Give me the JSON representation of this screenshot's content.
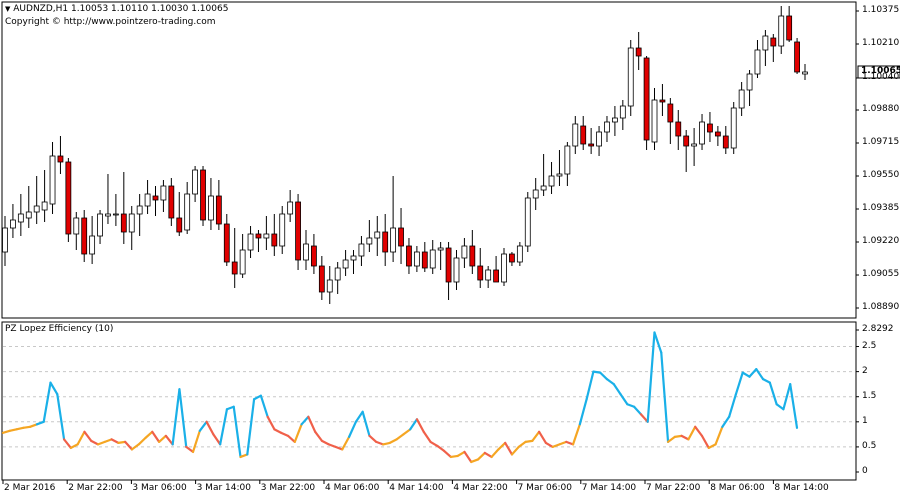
{
  "header": {
    "symbol_line": "AUDNZD,H1  1.10053 1.10110 1.10030 1.10065",
    "copyright": "Copyright © http://www.pointzero-trading.com"
  },
  "price_axis": {
    "ticks": [
      "1.10375",
      "1.10210",
      "1.10040",
      "1.09880",
      "1.09715",
      "1.09550",
      "1.09385",
      "1.09220",
      "1.09055",
      "1.08890"
    ],
    "current_label": "1.10065"
  },
  "indicator": {
    "title": "PZ Lopez Efficiency (10)",
    "ticks": [
      "2.8292",
      "2.5",
      "2",
      "1.5",
      "1",
      "0.5",
      "0"
    ]
  },
  "time_axis": {
    "labels": [
      "2 Mar 2016",
      "2 Mar 22:00",
      "3 Mar 06:00",
      "3 Mar 14:00",
      "3 Mar 22:00",
      "4 Mar 06:00",
      "4 Mar 14:00",
      "4 Mar 22:00",
      "7 Mar 06:00",
      "7 Mar 14:00",
      "7 Mar 22:00",
      "8 Mar 06:00",
      "8 Mar 14:00"
    ]
  },
  "colors": {
    "bull_body": "#ffffff",
    "bear_body": "#e00000",
    "wick": "#000000",
    "line_orange": "#f5a623",
    "line_red": "#f0604a",
    "line_blue": "#1ab0e8",
    "grid": "#c8c8c8"
  },
  "chart_data": [
    {
      "type": "candlestick",
      "title": "AUDNZD,H1",
      "ylim": [
        1.0884,
        1.1042
      ],
      "candles": [
        {
          "o": 1.0917,
          "h": 1.0935,
          "l": 1.091,
          "c": 1.0929
        },
        {
          "o": 1.0929,
          "h": 1.0941,
          "l": 1.0924,
          "c": 1.0933
        },
        {
          "o": 1.0932,
          "h": 1.0946,
          "l": 1.0925,
          "c": 1.0936
        },
        {
          "o": 1.0934,
          "h": 1.095,
          "l": 1.0929,
          "c": 1.0937
        },
        {
          "o": 1.0937,
          "h": 1.0955,
          "l": 1.0931,
          "c": 1.094
        },
        {
          "o": 1.0938,
          "h": 1.0958,
          "l": 1.0932,
          "c": 1.0942
        },
        {
          "o": 1.0941,
          "h": 1.0972,
          "l": 1.0936,
          "c": 1.0965
        },
        {
          "o": 1.0965,
          "h": 1.0975,
          "l": 1.0956,
          "c": 1.0962
        },
        {
          "o": 1.0962,
          "h": 1.0964,
          "l": 1.0922,
          "c": 1.0926
        },
        {
          "o": 1.0926,
          "h": 1.0937,
          "l": 1.0918,
          "c": 1.0934
        },
        {
          "o": 1.0934,
          "h": 1.0938,
          "l": 1.0912,
          "c": 1.0916
        },
        {
          "o": 1.0916,
          "h": 1.0935,
          "l": 1.0911,
          "c": 1.0925
        },
        {
          "o": 1.0925,
          "h": 1.0938,
          "l": 1.0921,
          "c": 1.0936
        },
        {
          "o": 1.0935,
          "h": 1.0956,
          "l": 1.0931,
          "c": 1.0936
        },
        {
          "o": 1.0936,
          "h": 1.0946,
          "l": 1.093,
          "c": 1.0936
        },
        {
          "o": 1.0936,
          "h": 1.0957,
          "l": 1.0921,
          "c": 1.0927
        },
        {
          "o": 1.0927,
          "h": 1.094,
          "l": 1.0918,
          "c": 1.0936
        },
        {
          "o": 1.0936,
          "h": 1.0946,
          "l": 1.0925,
          "c": 1.094
        },
        {
          "o": 1.094,
          "h": 1.0953,
          "l": 1.0936,
          "c": 1.0946
        },
        {
          "o": 1.0945,
          "h": 1.095,
          "l": 1.0935,
          "c": 1.0943
        },
        {
          "o": 1.0943,
          "h": 1.0953,
          "l": 1.0937,
          "c": 1.095
        },
        {
          "o": 1.095,
          "h": 1.0954,
          "l": 1.093,
          "c": 1.0934
        },
        {
          "o": 1.0934,
          "h": 1.0947,
          "l": 1.0925,
          "c": 1.0927
        },
        {
          "o": 1.0928,
          "h": 1.0952,
          "l": 1.0926,
          "c": 1.0946
        },
        {
          "o": 1.0946,
          "h": 1.096,
          "l": 1.0942,
          "c": 1.0958
        },
        {
          "o": 1.0958,
          "h": 1.096,
          "l": 1.093,
          "c": 1.0933
        },
        {
          "o": 1.0933,
          "h": 1.0954,
          "l": 1.0928,
          "c": 1.0945
        },
        {
          "o": 1.0945,
          "h": 1.0953,
          "l": 1.0928,
          "c": 1.0931
        },
        {
          "o": 1.0931,
          "h": 1.0936,
          "l": 1.091,
          "c": 1.0912
        },
        {
          "o": 1.0912,
          "h": 1.0929,
          "l": 1.0899,
          "c": 1.0906
        },
        {
          "o": 1.0906,
          "h": 1.0926,
          "l": 1.0904,
          "c": 1.0918
        },
        {
          "o": 1.0918,
          "h": 1.093,
          "l": 1.0914,
          "c": 1.0926
        },
        {
          "o": 1.0926,
          "h": 1.0928,
          "l": 1.0917,
          "c": 1.0924
        },
        {
          "o": 1.0924,
          "h": 1.0935,
          "l": 1.0918,
          "c": 1.0926
        },
        {
          "o": 1.0926,
          "h": 1.0936,
          "l": 1.0915,
          "c": 1.092
        },
        {
          "o": 1.092,
          "h": 1.094,
          "l": 1.0916,
          "c": 1.0936
        },
        {
          "o": 1.0936,
          "h": 1.0948,
          "l": 1.0932,
          "c": 1.0942
        },
        {
          "o": 1.0942,
          "h": 1.0946,
          "l": 1.0908,
          "c": 1.0913
        },
        {
          "o": 1.0913,
          "h": 1.0928,
          "l": 1.0908,
          "c": 1.0921
        },
        {
          "o": 1.092,
          "h": 1.0926,
          "l": 1.0906,
          "c": 1.091
        },
        {
          "o": 1.091,
          "h": 1.0915,
          "l": 1.0893,
          "c": 1.0897
        },
        {
          "o": 1.0897,
          "h": 1.091,
          "l": 1.0891,
          "c": 1.0903
        },
        {
          "o": 1.0903,
          "h": 1.0912,
          "l": 1.0896,
          "c": 1.0909
        },
        {
          "o": 1.0909,
          "h": 1.0918,
          "l": 1.0905,
          "c": 1.0913
        },
        {
          "o": 1.0913,
          "h": 1.0918,
          "l": 1.0906,
          "c": 1.0915
        },
        {
          "o": 1.0915,
          "h": 1.0925,
          "l": 1.091,
          "c": 1.0921
        },
        {
          "o": 1.0921,
          "h": 1.0933,
          "l": 1.0917,
          "c": 1.0924
        },
        {
          "o": 1.0924,
          "h": 1.0935,
          "l": 1.0915,
          "c": 1.0927
        },
        {
          "o": 1.0927,
          "h": 1.0936,
          "l": 1.091,
          "c": 1.0917
        },
        {
          "o": 1.0917,
          "h": 1.0955,
          "l": 1.0912,
          "c": 1.0929
        },
        {
          "o": 1.0929,
          "h": 1.0939,
          "l": 1.0911,
          "c": 1.092
        },
        {
          "o": 1.092,
          "h": 1.0924,
          "l": 1.0906,
          "c": 1.091
        },
        {
          "o": 1.091,
          "h": 1.092,
          "l": 1.0907,
          "c": 1.0917
        },
        {
          "o": 1.0917,
          "h": 1.0922,
          "l": 1.0907,
          "c": 1.0909
        },
        {
          "o": 1.0909,
          "h": 1.0923,
          "l": 1.0906,
          "c": 1.0918
        },
        {
          "o": 1.0918,
          "h": 1.0922,
          "l": 1.0908,
          "c": 1.0919
        },
        {
          "o": 1.0919,
          "h": 1.0922,
          "l": 1.0893,
          "c": 1.0902
        },
        {
          "o": 1.0902,
          "h": 1.0918,
          "l": 1.0898,
          "c": 1.0914
        },
        {
          "o": 1.0914,
          "h": 1.0924,
          "l": 1.0909,
          "c": 1.092
        },
        {
          "o": 1.092,
          "h": 1.0928,
          "l": 1.0906,
          "c": 1.091
        },
        {
          "o": 1.091,
          "h": 1.0919,
          "l": 1.0899,
          "c": 1.0903
        },
        {
          "o": 1.0903,
          "h": 1.091,
          "l": 1.0899,
          "c": 1.0908
        },
        {
          "o": 1.0908,
          "h": 1.0915,
          "l": 1.0903,
          "c": 1.0902
        },
        {
          "o": 1.0902,
          "h": 1.0919,
          "l": 1.09,
          "c": 1.0916
        },
        {
          "o": 1.0916,
          "h": 1.0917,
          "l": 1.091,
          "c": 1.0912
        },
        {
          "o": 1.0912,
          "h": 1.0922,
          "l": 1.091,
          "c": 1.092
        },
        {
          "o": 1.092,
          "h": 1.0947,
          "l": 1.0917,
          "c": 1.0944
        },
        {
          "o": 1.0944,
          "h": 1.0954,
          "l": 1.0938,
          "c": 1.0948
        },
        {
          "o": 1.0948,
          "h": 1.0966,
          "l": 1.0945,
          "c": 1.095
        },
        {
          "o": 1.095,
          "h": 1.0962,
          "l": 1.0946,
          "c": 1.0955
        },
        {
          "o": 1.0955,
          "h": 1.0968,
          "l": 1.095,
          "c": 1.0956
        },
        {
          "o": 1.0956,
          "h": 1.0972,
          "l": 1.095,
          "c": 1.097
        },
        {
          "o": 1.097,
          "h": 1.0985,
          "l": 1.0966,
          "c": 1.0981
        },
        {
          "o": 1.098,
          "h": 1.0985,
          "l": 1.0968,
          "c": 1.0971
        },
        {
          "o": 1.0971,
          "h": 1.0979,
          "l": 1.0966,
          "c": 1.097
        },
        {
          "o": 1.097,
          "h": 1.098,
          "l": 1.0965,
          "c": 1.0977
        },
        {
          "o": 1.0977,
          "h": 1.0985,
          "l": 1.0972,
          "c": 1.0982
        },
        {
          "o": 1.0982,
          "h": 1.099,
          "l": 1.0975,
          "c": 1.0984
        },
        {
          "o": 1.0984,
          "h": 1.0993,
          "l": 1.0978,
          "c": 1.099
        },
        {
          "o": 1.099,
          "h": 1.1023,
          "l": 1.0985,
          "c": 1.1019
        },
        {
          "o": 1.1019,
          "h": 1.1027,
          "l": 1.1008,
          "c": 1.1015
        },
        {
          "o": 1.1014,
          "h": 1.1015,
          "l": 1.0968,
          "c": 1.0973
        },
        {
          "o": 1.0972,
          "h": 1.0999,
          "l": 1.0968,
          "c": 1.0993
        },
        {
          "o": 1.0993,
          "h": 1.1001,
          "l": 1.0985,
          "c": 1.0992
        },
        {
          "o": 1.0991,
          "h": 1.0994,
          "l": 1.0971,
          "c": 1.0982
        },
        {
          "o": 1.0982,
          "h": 1.0988,
          "l": 1.0968,
          "c": 1.0975
        },
        {
          "o": 1.0975,
          "h": 1.0978,
          "l": 1.0957,
          "c": 1.097
        },
        {
          "o": 1.097,
          "h": 1.0979,
          "l": 1.096,
          "c": 1.0971
        },
        {
          "o": 1.0971,
          "h": 1.0986,
          "l": 1.0968,
          "c": 1.0982
        },
        {
          "o": 1.0981,
          "h": 1.0987,
          "l": 1.0972,
          "c": 1.0977
        },
        {
          "o": 1.0977,
          "h": 1.098,
          "l": 1.097,
          "c": 1.0975
        },
        {
          "o": 1.0975,
          "h": 1.098,
          "l": 1.0966,
          "c": 1.0969
        },
        {
          "o": 1.0969,
          "h": 1.0992,
          "l": 1.0966,
          "c": 1.0989
        },
        {
          "o": 1.0989,
          "h": 1.1002,
          "l": 1.0985,
          "c": 1.0998
        },
        {
          "o": 1.0998,
          "h": 1.1008,
          "l": 1.099,
          "c": 1.1006
        },
        {
          "o": 1.1006,
          "h": 1.1023,
          "l": 1.1004,
          "c": 1.1018
        },
        {
          "o": 1.1018,
          "h": 1.1028,
          "l": 1.101,
          "c": 1.1025
        },
        {
          "o": 1.1024,
          "h": 1.1026,
          "l": 1.1012,
          "c": 1.102
        },
        {
          "o": 1.102,
          "h": 1.104,
          "l": 1.1016,
          "c": 1.1035
        },
        {
          "o": 1.1035,
          "h": 1.104,
          "l": 1.1022,
          "c": 1.1023
        },
        {
          "o": 1.1022,
          "h": 1.1024,
          "l": 1.1006,
          "c": 1.1007
        },
        {
          "o": 1.1006,
          "h": 1.1011,
          "l": 1.1003,
          "c": 1.1007
        }
      ]
    },
    {
      "type": "line",
      "title": "PZ Lopez Efficiency (10)",
      "ylim": [
        0,
        2.8292
      ],
      "values": [
        0.78,
        0.82,
        0.85,
        0.88,
        0.9,
        0.95,
        1.0,
        1.78,
        1.55,
        0.65,
        0.48,
        0.55,
        0.8,
        0.62,
        0.55,
        0.6,
        0.65,
        0.58,
        0.6,
        0.45,
        0.55,
        0.68,
        0.8,
        0.6,
        0.72,
        0.55,
        1.65,
        0.5,
        0.4,
        0.82,
        1.0,
        0.75,
        0.55,
        1.25,
        1.3,
        0.3,
        0.35,
        1.45,
        1.52,
        1.1,
        0.85,
        0.78,
        0.72,
        0.6,
        0.95,
        1.1,
        0.8,
        0.62,
        0.55,
        0.5,
        0.45,
        0.7,
        1.0,
        1.2,
        0.72,
        0.6,
        0.55,
        0.58,
        0.65,
        0.75,
        0.85,
        1.05,
        0.8,
        0.6,
        0.52,
        0.42,
        0.3,
        0.32,
        0.4,
        0.2,
        0.25,
        0.38,
        0.3,
        0.45,
        0.58,
        0.35,
        0.5,
        0.6,
        0.62,
        0.8,
        0.58,
        0.5,
        0.55,
        0.6,
        0.55,
        0.95,
        1.45,
        2.0,
        1.98,
        1.85,
        1.75,
        1.55,
        1.35,
        1.3,
        1.15,
        1.0,
        2.78,
        2.38,
        0.6,
        0.7,
        0.72,
        0.65,
        0.9,
        0.72,
        0.48,
        0.55,
        0.9,
        1.1,
        1.55,
        1.98,
        1.9,
        2.05,
        1.85,
        1.78,
        1.35,
        1.25,
        1.75,
        0.88
      ],
      "series": [
        {
          "name": "PZ Lopez Efficiency (10)"
        }
      ]
    }
  ]
}
